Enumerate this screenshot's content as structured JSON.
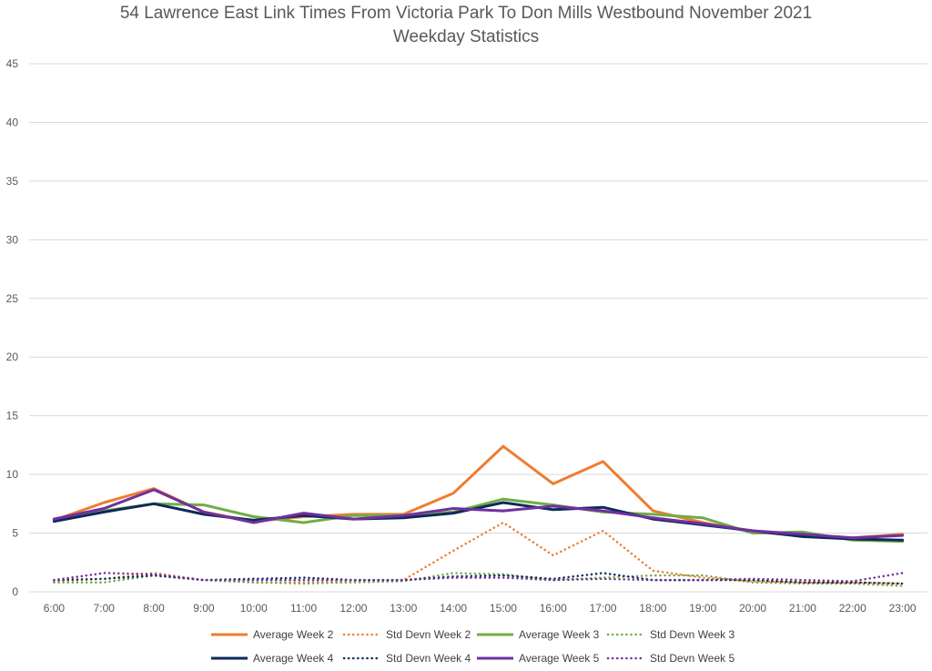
{
  "chart_data": {
    "type": "line",
    "title": "54 Lawrence East Link Times From Victoria Park To Don Mills Westbound November 2021",
    "subtitle": "Weekday Statistics",
    "xlabel": "",
    "ylabel": "",
    "ylim": [
      0,
      45
    ],
    "yticks": [
      0,
      5,
      10,
      15,
      20,
      25,
      30,
      35,
      40,
      45
    ],
    "grid": true,
    "legend_position": "bottom",
    "categories": [
      "6:00",
      "7:00",
      "8:00",
      "9:00",
      "10:00",
      "11:00",
      "12:00",
      "13:00",
      "14:00",
      "15:00",
      "16:00",
      "17:00",
      "18:00",
      "19:00",
      "20:00",
      "21:00",
      "22:00",
      "23:00"
    ],
    "series": [
      {
        "name": "Average Week 2",
        "color": "#ed7d31",
        "style": "solid",
        "values": [
          6.1,
          7.6,
          8.8,
          6.8,
          6.0,
          6.4,
          6.6,
          6.6,
          8.4,
          12.4,
          9.2,
          11.1,
          6.9,
          5.9,
          5.1,
          4.8,
          4.6,
          4.9
        ]
      },
      {
        "name": "Std Devn Week 2",
        "color": "#ed7d31",
        "style": "dotted",
        "values": [
          0.9,
          1.1,
          1.6,
          1.0,
          0.8,
          0.8,
          0.9,
          1.0,
          3.5,
          5.9,
          3.1,
          5.2,
          1.8,
          1.2,
          0.9,
          0.8,
          0.8,
          0.7
        ]
      },
      {
        "name": "Average Week 3",
        "color": "#70ad47",
        "style": "solid",
        "values": [
          6.2,
          6.9,
          7.5,
          7.4,
          6.4,
          5.9,
          6.5,
          6.5,
          6.8,
          7.9,
          7.4,
          6.8,
          6.6,
          6.3,
          5.0,
          5.1,
          4.4,
          4.3
        ]
      },
      {
        "name": "Std Devn Week 3",
        "color": "#70ad47",
        "style": "dotted",
        "values": [
          0.8,
          0.8,
          1.4,
          1.0,
          0.8,
          0.7,
          0.8,
          0.9,
          1.6,
          1.5,
          1.0,
          1.2,
          1.4,
          1.4,
          0.8,
          0.7,
          0.7,
          0.5
        ]
      },
      {
        "name": "Average Week 4",
        "color": "#0e2a5a",
        "style": "solid",
        "values": [
          6.0,
          6.8,
          7.5,
          6.6,
          6.1,
          6.5,
          6.2,
          6.3,
          6.7,
          7.6,
          7.0,
          7.2,
          6.2,
          5.7,
          5.2,
          4.7,
          4.5,
          4.4
        ]
      },
      {
        "name": "Std Devn Week 4",
        "color": "#0e2a5a",
        "style": "dotted",
        "values": [
          1.0,
          1.1,
          1.4,
          1.0,
          1.1,
          1.2,
          1.0,
          1.0,
          1.3,
          1.4,
          1.1,
          1.6,
          1.0,
          1.0,
          1.0,
          0.8,
          0.8,
          0.7
        ]
      },
      {
        "name": "Average Week 5",
        "color": "#7030a0",
        "style": "solid",
        "values": [
          6.2,
          7.1,
          8.7,
          6.8,
          5.9,
          6.7,
          6.2,
          6.5,
          7.1,
          6.9,
          7.3,
          6.9,
          6.3,
          5.8,
          5.2,
          4.9,
          4.6,
          4.8
        ]
      },
      {
        "name": "Std Devn Week 5",
        "color": "#7030a0",
        "style": "dotted",
        "values": [
          1.0,
          1.6,
          1.5,
          1.0,
          1.0,
          1.0,
          1.0,
          1.0,
          1.2,
          1.2,
          1.0,
          1.1,
          1.0,
          1.0,
          1.1,
          1.0,
          0.9,
          1.6
        ]
      }
    ]
  }
}
